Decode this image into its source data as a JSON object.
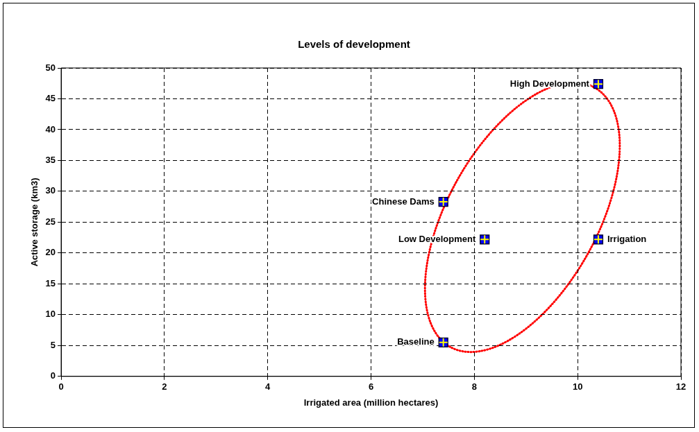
{
  "chart_data": {
    "type": "scatter",
    "title": "Levels of development",
    "xlabel": "Irrigated area (million hectares)",
    "ylabel": "Active storage (km3)",
    "x": [
      7.4,
      7.4,
      8.2,
      10.4,
      10.4
    ],
    "values": [
      5.5,
      28.3,
      22.2,
      22.2,
      47.4
    ],
    "color": "#0000ff",
    "marker": "square",
    "xlim": [
      0,
      12
    ],
    "xticks": [
      0,
      2,
      4,
      6,
      8,
      10,
      12
    ],
    "ylim": [
      0,
      50
    ],
    "yticks": [
      0,
      5,
      10,
      15,
      20,
      25,
      30,
      35,
      40,
      45,
      50
    ],
    "grid": true,
    "legend": false,
    "annotations": [
      {
        "text": "Baseline",
        "x": 7.4,
        "y": 5.5
      },
      {
        "text": "Chinese Dams",
        "x": 7.4,
        "y": 28.3
      },
      {
        "text": "Low Development",
        "x": 8.2,
        "y": 22.2
      },
      {
        "text": "Irrigation",
        "x": 10.4,
        "y": 22.2
      },
      {
        "text": "High Development",
        "x": 10.4,
        "y": 47.4
      }
    ]
  }
}
